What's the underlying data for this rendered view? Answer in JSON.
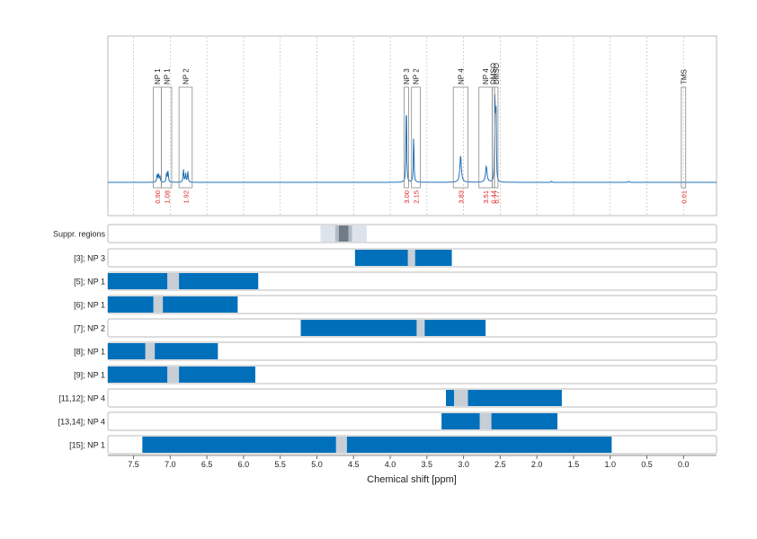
{
  "chart_data": {
    "type": "line",
    "x_axis": {
      "label": "Chemical shift [ppm]",
      "reversed": true,
      "range": [
        7.85,
        -0.45
      ],
      "ticks": [
        "7.5",
        "7.0",
        "6.5",
        "6.0",
        "5.5",
        "5.0",
        "4.5",
        "4.0",
        "3.5",
        "3.0",
        "2.5",
        "2.0",
        "1.5",
        "1.0",
        "0.5",
        "0.0"
      ]
    },
    "spectrum": {
      "color": "#1f6fb5",
      "grid": "vertical-dotted",
      "baseline": 0,
      "peaks": [
        {
          "x": 7.18,
          "h": 0.08,
          "w": 0.006
        },
        {
          "x": 7.16,
          "h": 0.1,
          "w": 0.006
        },
        {
          "x": 7.14,
          "h": 0.07,
          "w": 0.006
        },
        {
          "x": 7.05,
          "h": 0.1,
          "w": 0.006
        },
        {
          "x": 7.03,
          "h": 0.13,
          "w": 0.006
        },
        {
          "x": 6.82,
          "h": 0.15,
          "w": 0.006
        },
        {
          "x": 6.79,
          "h": 0.1,
          "w": 0.006
        },
        {
          "x": 6.76,
          "h": 0.12,
          "w": 0.006
        },
        {
          "x": 3.78,
          "h": 1.0,
          "w": 0.005
        },
        {
          "x": 3.68,
          "h": 0.58,
          "w": 0.005
        },
        {
          "x": 3.04,
          "h": 0.3,
          "w": 0.012
        },
        {
          "x": 2.69,
          "h": 0.18,
          "w": 0.012
        },
        {
          "x": 2.575,
          "h": 0.9,
          "w": 0.004
        },
        {
          "x": 2.565,
          "h": 0.85,
          "w": 0.004
        },
        {
          "x": 2.555,
          "h": 0.7,
          "w": 0.004
        },
        {
          "x": 1.8,
          "h": 0.015,
          "w": 0.005
        },
        {
          "x": 0.75,
          "h": 0.01,
          "w": 0.01
        }
      ]
    },
    "peak_groups": [
      {
        "label": "NP 1",
        "x_range": [
          7.23,
          7.12
        ],
        "integral": "0.90"
      },
      {
        "label": "NP 1",
        "x_range": [
          7.12,
          6.98
        ],
        "integral": "1.08"
      },
      {
        "label": "NP 2",
        "x_range": [
          6.88,
          6.7
        ],
        "integral": "1.92"
      },
      {
        "label": "NP 3",
        "x_range": [
          3.81,
          3.75
        ],
        "integral": "3.00"
      },
      {
        "label": "NP 2",
        "x_range": [
          3.71,
          3.59
        ],
        "integral": "2.15"
      },
      {
        "label": "NP 4",
        "x_range": [
          3.14,
          2.94
        ],
        "integral": "3.83"
      },
      {
        "label": "NP 4",
        "x_range": [
          2.79,
          2.61
        ],
        "integral": "3.51"
      },
      {
        "label": "DMSO",
        "x_range": [
          2.61,
          2.578
        ],
        "integral": "0.44"
      },
      {
        "label": "DMSO",
        "x_range": [
          2.578,
          2.53
        ],
        "integral": "0.77"
      },
      {
        "label": "TMS",
        "x_range": [
          0.03,
          -0.03
        ],
        "integral": "0.01"
      }
    ],
    "suppression": {
      "label": "Suppr. regions",
      "bands": [
        {
          "x_range": [
            4.95,
            4.32
          ],
          "shade": "light"
        },
        {
          "x_range": [
            4.75,
            4.52
          ],
          "shade": "mid"
        },
        {
          "x_range": [
            4.7,
            4.57
          ],
          "shade": "dark"
        }
      ]
    },
    "rows": [
      {
        "label": "[3]; NP 3",
        "bar": [
          4.48,
          3.16
        ],
        "gap": [
          3.76,
          3.66
        ]
      },
      {
        "label": "[5]; NP 1",
        "bar": [
          7.85,
          5.8
        ],
        "gap": [
          7.04,
          6.88
        ]
      },
      {
        "label": "[6]; NP 1",
        "bar": [
          7.85,
          6.08
        ],
        "gap": [
          7.23,
          7.1
        ]
      },
      {
        "label": "[7]; NP 2",
        "bar": [
          5.22,
          2.7
        ],
        "gap": [
          3.64,
          3.53
        ]
      },
      {
        "label": "[8]; NP 1",
        "bar": [
          7.85,
          6.35
        ],
        "gap": [
          7.34,
          7.21
        ]
      },
      {
        "label": "[9]; NP 1",
        "bar": [
          7.85,
          5.84
        ],
        "gap": [
          7.04,
          6.88
        ]
      },
      {
        "label": "[11,12]; NP 4",
        "bar": [
          3.24,
          1.66
        ],
        "gap": [
          3.13,
          2.94
        ]
      },
      {
        "label": "[13,14]; NP 4",
        "bar": [
          3.3,
          1.72
        ],
        "gap": [
          2.78,
          2.62
        ]
      },
      {
        "label": "[15]; NP 1",
        "bar": [
          7.38,
          0.98
        ],
        "gap": [
          4.74,
          4.59
        ]
      }
    ],
    "colors": {
      "bar": "#0070bb",
      "gap": "#c7ced6",
      "integral_text": "#e02020",
      "panel_border": "#bbbbbb",
      "supp_light": "#dde3ea",
      "supp_mid": "#b3bcc6",
      "supp_dark": "#6f7b87"
    }
  }
}
